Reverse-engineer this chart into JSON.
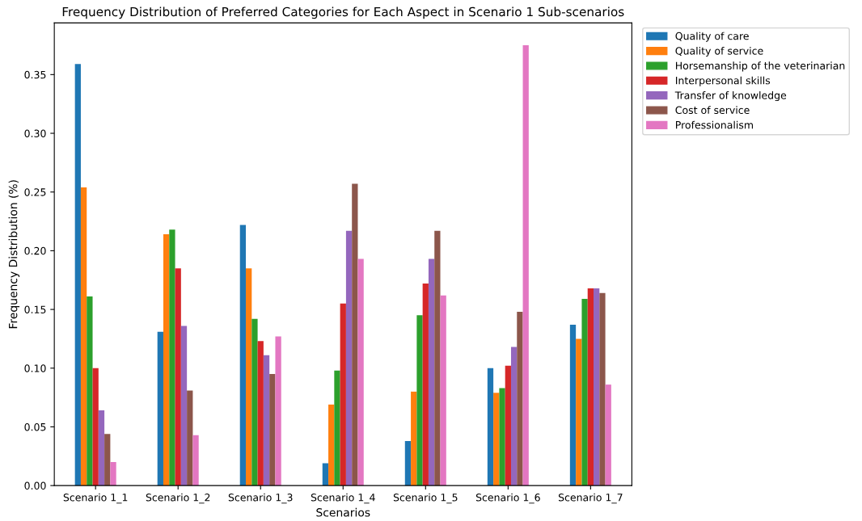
{
  "chart_data": {
    "type": "bar",
    "title": "Frequency Distribution of Preferred Categories for Each Aspect in Scenario 1 Sub-scenarios",
    "xlabel": "Scenarios",
    "ylabel": "Frequency Distribution (%)",
    "categories": [
      "Scenario 1_1",
      "Scenario 1_2",
      "Scenario 1_3",
      "Scenario 1_4",
      "Scenario 1_5",
      "Scenario 1_6",
      "Scenario 1_7"
    ],
    "series": [
      {
        "name": "Quality of care",
        "color": "#1f77b4",
        "values": [
          0.359,
          0.131,
          0.222,
          0.019,
          0.038,
          0.1,
          0.137
        ]
      },
      {
        "name": "Quality of service",
        "color": "#ff7f0e",
        "values": [
          0.254,
          0.214,
          0.185,
          0.069,
          0.08,
          0.079,
          0.125
        ]
      },
      {
        "name": "Horsemanship of the veterinarian",
        "color": "#2ca02c",
        "values": [
          0.161,
          0.218,
          0.142,
          0.098,
          0.145,
          0.083,
          0.159
        ]
      },
      {
        "name": "Interpersonal skills",
        "color": "#d62728",
        "values": [
          0.1,
          0.185,
          0.123,
          0.155,
          0.172,
          0.102,
          0.168
        ]
      },
      {
        "name": "Transfer of knowledge",
        "color": "#9467bd",
        "values": [
          0.064,
          0.136,
          0.111,
          0.217,
          0.193,
          0.118,
          0.168
        ]
      },
      {
        "name": "Cost of service",
        "color": "#8c564b",
        "values": [
          0.044,
          0.081,
          0.095,
          0.257,
          0.217,
          0.148,
          0.164
        ]
      },
      {
        "name": "Professionalism",
        "color": "#e377c2",
        "values": [
          0.02,
          0.043,
          0.127,
          0.193,
          0.162,
          0.375,
          0.086
        ]
      }
    ],
    "ylim": [
      0,
      0.394
    ],
    "yticks": [
      {
        "value": 0,
        "label": "0.00"
      },
      {
        "value": 0.05,
        "label": "0.05"
      },
      {
        "value": 0.1,
        "label": "0.10"
      },
      {
        "value": 0.15,
        "label": "0.15"
      },
      {
        "value": 0.2,
        "label": "0.20"
      },
      {
        "value": 0.25,
        "label": "0.25"
      },
      {
        "value": 0.3,
        "label": "0.30"
      },
      {
        "value": 0.35,
        "label": "0.35"
      }
    ],
    "legend": "top right"
  }
}
